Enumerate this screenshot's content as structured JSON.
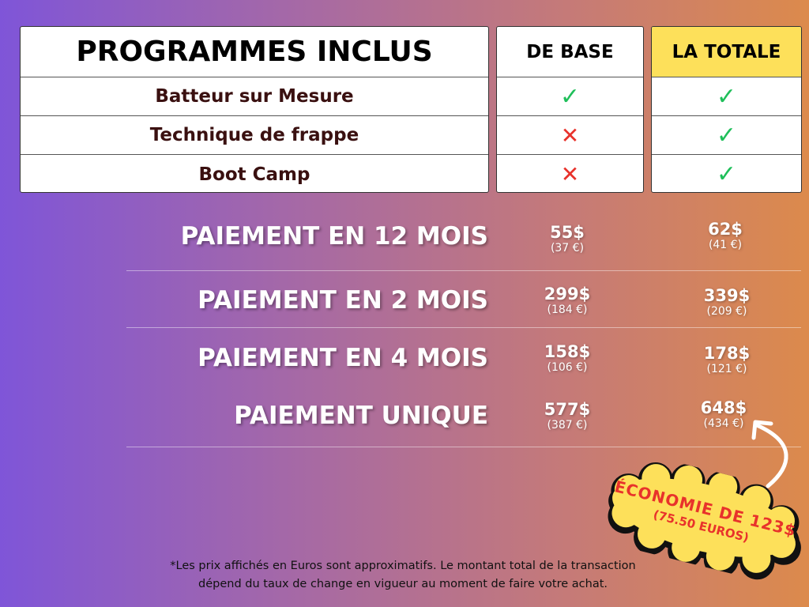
{
  "table": {
    "header": "PROGRAMMES INCLUS",
    "programs": [
      "Batteur sur Mesure",
      "Technique de frappe",
      "Boot Camp"
    ],
    "plans": [
      {
        "name": "DE BASE",
        "included": [
          true,
          false,
          false
        ]
      },
      {
        "name": "LA TOTALE",
        "included": [
          true,
          true,
          true
        ],
        "highlight": "#fde05a"
      }
    ]
  },
  "icons": {
    "check": "✓",
    "cross": "✕"
  },
  "payments": [
    {
      "label": "PAIEMENT EN 12 MOIS",
      "base": "55$",
      "base_eur": "(37 €)",
      "totale": "62$",
      "totale_eur": "(41 €)"
    },
    {
      "label": "PAIEMENT EN 2 MOIS",
      "base": "299$",
      "base_eur": "(184 €)",
      "totale": "339$",
      "totale_eur": "(209 €)"
    },
    {
      "label": "PAIEMENT EN 4 MOIS",
      "base": "158$",
      "base_eur": "(106 €)",
      "totale": "178$",
      "totale_eur": "(121 €)"
    },
    {
      "label": "PAIEMENT UNIQUE",
      "base": "577$",
      "base_eur": "(387 €)",
      "totale": "648$",
      "totale_eur": "(434 €)"
    }
  ],
  "savings": {
    "line1": "ÉCONOMIE DE 123$",
    "line2": "(75.50 EUROS)"
  },
  "footnote": {
    "line1": "*Les prix affichés en Euros sont approximatifs. Le montant total de la transaction",
    "line2": "dépend du taux de change en vigueur au moment de faire votre achat."
  }
}
